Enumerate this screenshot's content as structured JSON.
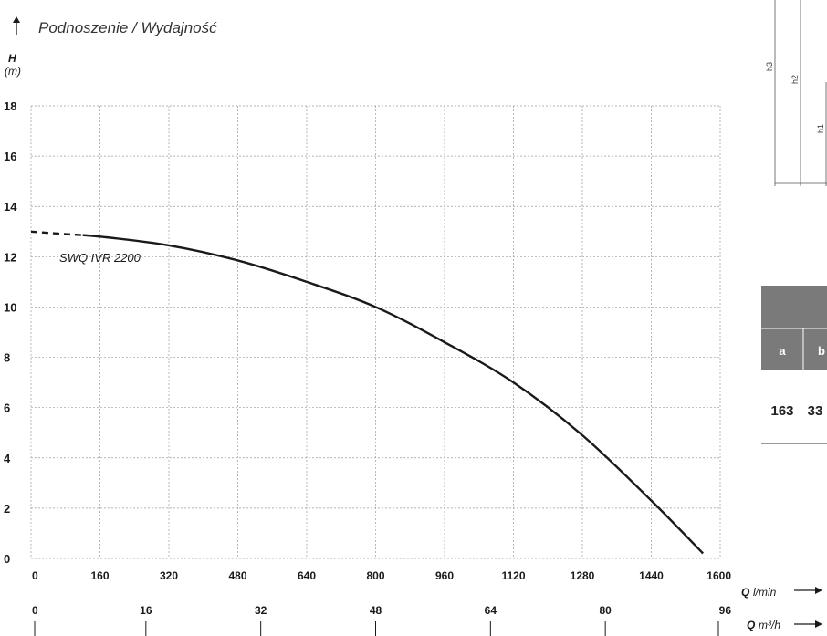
{
  "colors": {
    "grid": "#9a9a9a",
    "curve": "#1a1a1a",
    "table_header": "#7a7a7a",
    "text": "#1a1a1a"
  },
  "chart_data": {
    "type": "line",
    "title": "Podnoszenie / Wydajność",
    "y_axis": {
      "symbol": "H",
      "unit": "(m)",
      "ticks": [
        "18",
        "16",
        "14",
        "12",
        "10",
        "8",
        "6",
        "4",
        "2",
        "0"
      ],
      "ylim": [
        0,
        18
      ]
    },
    "x_axis_primary": {
      "symbol": "Q",
      "unit": "l/min",
      "ticks": [
        "0",
        "160",
        "320",
        "480",
        "640",
        "800",
        "960",
        "1120",
        "1280",
        "1440",
        "1600"
      ],
      "xlim": [
        0,
        1600
      ]
    },
    "x_axis_secondary": {
      "symbol": "Q",
      "unit": "m³/h",
      "ticks": [
        "0",
        "16",
        "32",
        "48",
        "64",
        "80",
        "96"
      ],
      "xlim": [
        0,
        96
      ]
    },
    "grid": true,
    "series": [
      {
        "name": "SWQ IVR 2200",
        "dashed_until_x": 120,
        "x": [
          0,
          80,
          160,
          320,
          480,
          640,
          800,
          960,
          1120,
          1280,
          1440,
          1560
        ],
        "y": [
          13.0,
          12.9,
          12.8,
          12.45,
          11.85,
          11.0,
          10.0,
          8.6,
          7.0,
          4.9,
          2.3,
          0.2
        ]
      }
    ]
  },
  "dimension_drawing": {
    "labels": [
      "h3",
      "h2",
      "h1"
    ]
  },
  "dimension_table": {
    "headers": [
      "a",
      "b"
    ],
    "values": [
      "163",
      "33"
    ]
  }
}
